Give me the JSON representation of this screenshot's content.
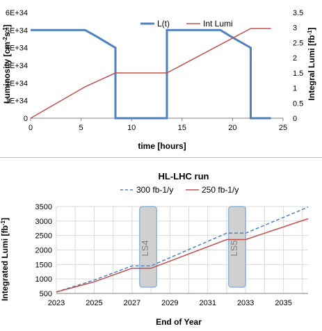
{
  "chart_data": [
    {
      "type": "line",
      "xlabel": "time [hours]",
      "ylabel": "Luminosity",
      "ylabel_unit": "cm",
      "ylabel_sup1": "-2",
      "ylabel_mid": "s",
      "ylabel_sup2": "-1",
      "y2label": "Integral Lumi",
      "y2label_unit": "fb",
      "y2label_sup": "-1",
      "xlim": [
        0,
        25
      ],
      "xticks": [
        0,
        5,
        10,
        15,
        20,
        25
      ],
      "ylim": [
        0,
        6e+34
      ],
      "yticks": [
        "0",
        "1E+34",
        "2E+34",
        "3E+34",
        "4E+34",
        "5E+34",
        "6E+34"
      ],
      "y2lim": [
        0,
        3.5
      ],
      "y2ticks": [
        "0",
        "0.5",
        "1",
        "1.5",
        "2",
        "2.5",
        "3",
        "3.5"
      ],
      "legend_position": "top-right",
      "series": [
        {
          "name": "L(t)",
          "axis": "left",
          "color": "#4f81bd",
          "x": [
            0,
            5.4,
            6.5,
            8.4,
            8.4,
            13.5,
            13.5,
            18.8,
            19.8,
            21.8,
            21.8,
            23.8
          ],
          "y": [
            5e+34,
            5e+34,
            4.65e+34,
            4e+34,
            0,
            0,
            5e+34,
            5e+34,
            4.65e+34,
            4e+34,
            0,
            0
          ]
        },
        {
          "name": "Int Lumi",
          "axis": "right",
          "color": "#c0504d",
          "x": [
            0,
            5.4,
            8.4,
            13.5,
            21.8,
            23.8
          ],
          "y": [
            0,
            1.04,
            1.5,
            1.5,
            2.97,
            2.97
          ]
        }
      ]
    },
    {
      "type": "line",
      "title": "HL-LHC run",
      "xlabel": "End of Year",
      "ylabel": "Integrated Lumi",
      "ylabel_unit": "fb",
      "ylabel_sup": "-1",
      "xlim": [
        2023,
        2036.3
      ],
      "xticks": [
        2023,
        2025,
        2027,
        2029,
        2031,
        2033,
        2035
      ],
      "ylim": [
        500,
        3500
      ],
      "yticks": [
        500,
        1000,
        1500,
        2000,
        2500,
        3000,
        3500
      ],
      "grid": true,
      "legend_position": "top",
      "annotations": [
        {
          "text": "LS4",
          "x_start": 2027.4,
          "x_end": 2028.3
        },
        {
          "text": "LS5",
          "x_start": 2032.1,
          "x_end": 2033.0
        }
      ],
      "series": [
        {
          "name": "300 fb-1/y",
          "color": "#4f81bd",
          "dash": true,
          "x": [
            2023,
            2025,
            2027,
            2028,
            2032,
            2033,
            2036.3
          ],
          "y": [
            550,
            960,
            1450,
            1450,
            2580,
            2580,
            3480
          ]
        },
        {
          "name": "250 fb-1/y",
          "color": "#c0504d",
          "dash": false,
          "x": [
            2023,
            2025,
            2027,
            2028,
            2032,
            2033,
            2036.3
          ],
          "y": [
            550,
            900,
            1370,
            1370,
            2360,
            2360,
            3080
          ]
        }
      ]
    }
  ]
}
